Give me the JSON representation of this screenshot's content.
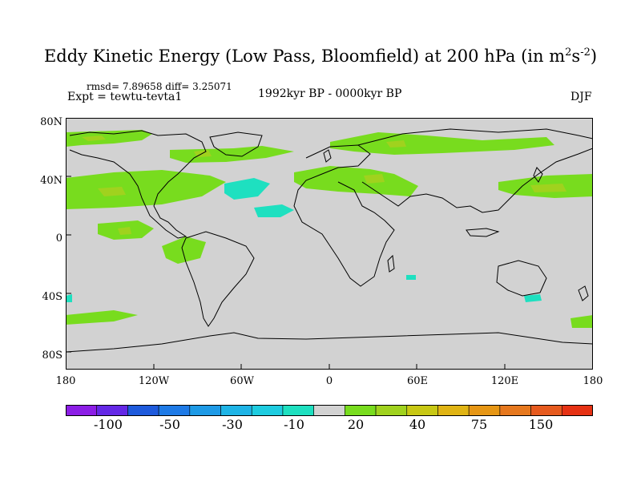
{
  "title_main": "Eddy Kinetic Energy (Low Pass, Bloomfield) at 200 hPa (in m",
  "title_sup1": "2",
  "title_mid": "s",
  "title_sup2": "-2",
  "title_end": ")",
  "stats": "rmsd= 7.89658 diff= 3.25071",
  "expt": "Expt = tewtu-tevta1",
  "period": "1992kyr BP - 0000kyr BP",
  "season": "DJF",
  "y_ticks": [
    "80N",
    "40N",
    "0",
    "40S",
    "80S"
  ],
  "x_ticks": [
    "180",
    "120W",
    "60W",
    "0",
    "60E",
    "120E",
    "180"
  ],
  "colorbar": {
    "colors": [
      "#8c1ee6",
      "#6428e6",
      "#1e5adc",
      "#1e7ae6",
      "#1e9ae6",
      "#1eb4e6",
      "#1ecce0",
      "#1ee0c0",
      "#d2d2d2",
      "#78dc1e",
      "#a0d21e",
      "#c8c814",
      "#e0b414",
      "#e69614",
      "#e6781e",
      "#e65a1e",
      "#e63214"
    ],
    "labels": [
      "-100",
      "-50",
      "-30",
      "-10",
      "20",
      "40",
      "75",
      "150"
    ]
  },
  "legend_colors": {
    "land_outline": "#000000",
    "ocean_background": "#d2d2d2",
    "positive_light_green": "#78dc1e",
    "positive_yellow_green": "#a0d21e",
    "negative_cyan": "#1ee0c0"
  }
}
